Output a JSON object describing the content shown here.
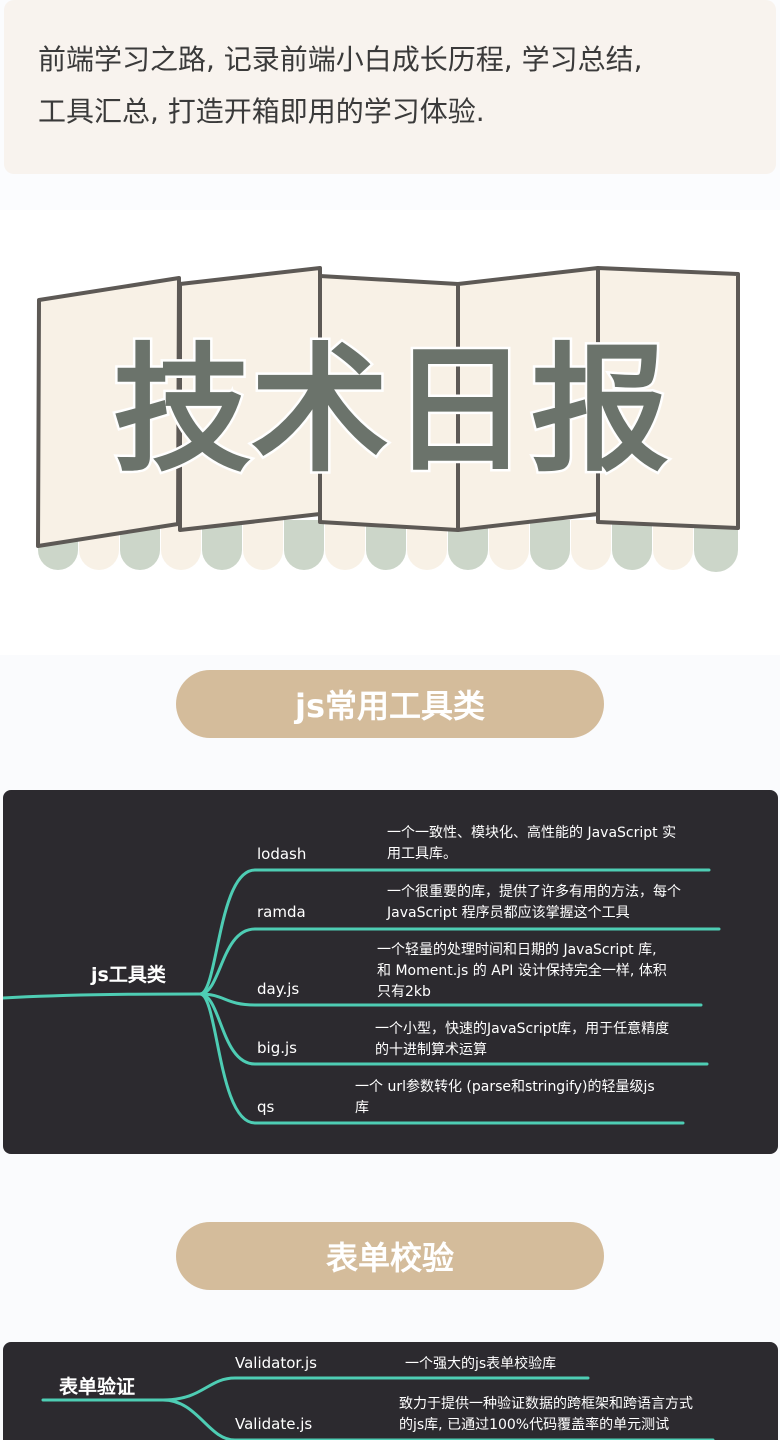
{
  "intro": {
    "line1": "前端学习之路, 记录前端小白成长历程, 学习总结,",
    "line2": "工具汇总, 打造开箱即用的学习体验."
  },
  "banner": {
    "chars": [
      "技",
      "术",
      "日",
      "报"
    ]
  },
  "colors": {
    "accent_pill": "#d4bc9b",
    "mindmap_bg": "#2c2a2f",
    "branch_line": "#4ecdb4",
    "banner_text": "#6b736b",
    "awning_green": "#ccd6c9"
  },
  "sections": [
    {
      "title": "js常用工具类",
      "mindmap": {
        "root": "js工具类",
        "items": [
          {
            "name": "lodash",
            "desc_lines": [
              "一个一致性、模块化、高性能的 JavaScript 实",
              "用工具库。"
            ]
          },
          {
            "name": "ramda",
            "desc_lines": [
              "一个很重要的库，提供了许多有用的方法，每个",
              "JavaScript 程序员都应该掌握这个工具"
            ]
          },
          {
            "name": "day.js",
            "desc_lines": [
              "一个轻量的处理时间和日期的 JavaScript 库,",
              "和 Moment.js 的 API 设计保持完全一样, 体积",
              "只有2kb"
            ]
          },
          {
            "name": "big.js",
            "desc_lines": [
              "一个小型，快速的JavaScript库，用于任意精度",
              "的十进制算术运算"
            ]
          },
          {
            "name": "qs",
            "desc_lines": [
              "一个 url参数转化 (parse和stringify)的轻量级js",
              "库"
            ]
          }
        ]
      }
    },
    {
      "title": "表单校验",
      "mindmap": {
        "root": "表单验证",
        "items": [
          {
            "name": "Validator.js",
            "desc_lines": [
              "一个强大的js表单校验库"
            ]
          },
          {
            "name": "Validate.js",
            "desc_lines": [
              "致力于提供一种验证数据的跨框架和跨语言方式",
              "的js库, 已通过100%代码覆盖率的单元测试"
            ]
          }
        ]
      }
    }
  ]
}
